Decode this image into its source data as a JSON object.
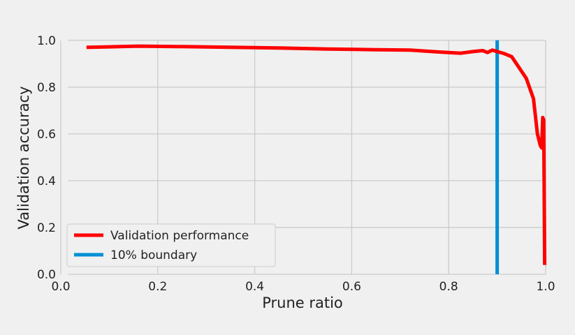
{
  "chart_data": {
    "type": "line",
    "title": "",
    "xlabel": "Prune ratio",
    "ylabel": "Validation accuracy",
    "xlim": [
      0.0,
      1.0
    ],
    "ylim": [
      0.0,
      1.05
    ],
    "xticks": [
      "0.0",
      "0.2",
      "0.4",
      "0.6",
      "0.8",
      "1.0"
    ],
    "yticks": [
      "0.0",
      "0.2",
      "0.4",
      "0.6",
      "0.8",
      "1.0"
    ],
    "grid": true,
    "legend_position": "lower-left",
    "series": [
      {
        "name": "Validation performance",
        "color": "#ff0000",
        "x": [
          0.053,
          0.1,
          0.16,
          0.25,
          0.35,
          0.45,
          0.55,
          0.65,
          0.72,
          0.78,
          0.825,
          0.85,
          0.87,
          0.88,
          0.89,
          0.9,
          0.915,
          0.93,
          0.96,
          0.975,
          0.983,
          0.989,
          0.992,
          0.994,
          0.996,
          0.998
        ],
        "y": [
          0.97,
          0.972,
          0.975,
          0.973,
          0.97,
          0.967,
          0.963,
          0.96,
          0.958,
          0.95,
          0.945,
          0.952,
          0.956,
          0.948,
          0.958,
          0.952,
          0.943,
          0.93,
          0.838,
          0.75,
          0.6,
          0.55,
          0.54,
          0.67,
          0.66,
          0.04
        ]
      }
    ],
    "vlines": [
      {
        "name": "10% boundary",
        "x": 0.9,
        "color": "#008fd5"
      }
    ]
  }
}
